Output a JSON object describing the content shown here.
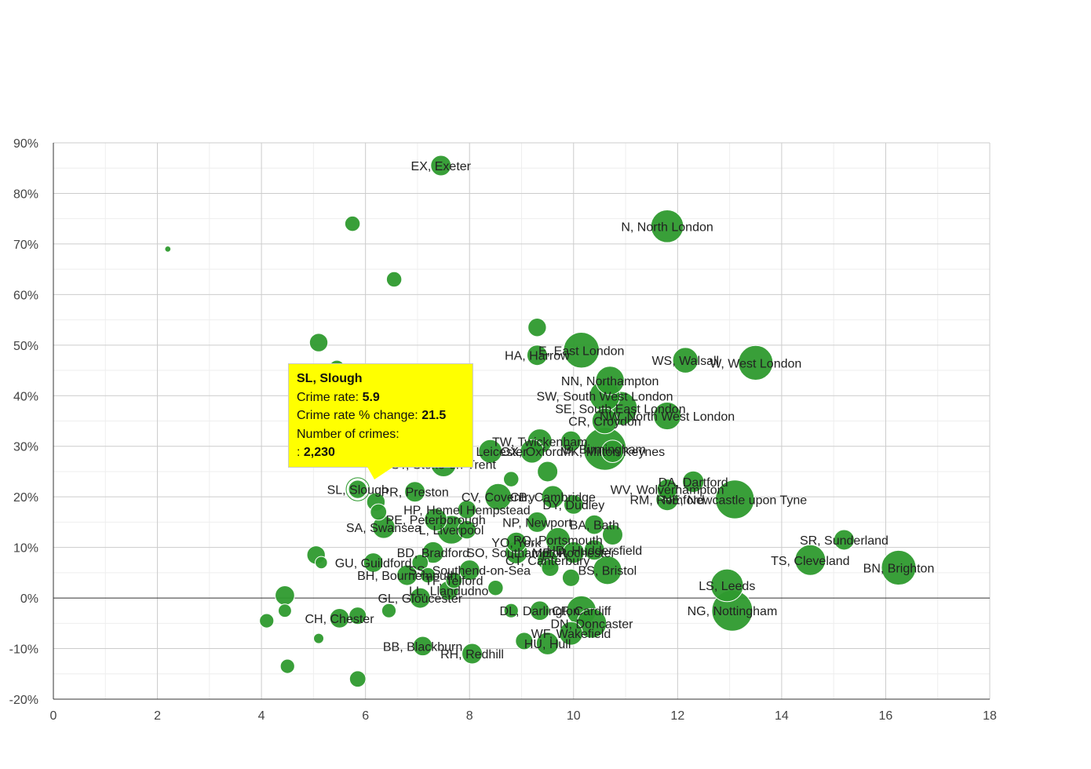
{
  "chart_data": {
    "type": "scatter",
    "title": "",
    "xlabel": "",
    "ylabel": "",
    "xlim": [
      0,
      18
    ],
    "ylim": [
      -20,
      90
    ],
    "x_ticks": [
      "0",
      "2",
      "4",
      "6",
      "8",
      "10",
      "12",
      "14",
      "16",
      "18"
    ],
    "y_ticks": [
      "-20%",
      "-10%",
      "0%",
      "10%",
      "20%",
      "30%",
      "40%",
      "50%",
      "60%",
      "70%",
      "80%",
      "90%"
    ],
    "grid": true,
    "colors": {
      "bubble": "#2e9a2e",
      "highlight_ring": "#ffffff",
      "tooltip_bg": "#ffff00"
    },
    "points": [
      {
        "label": "EX, Exeter",
        "x": 7.45,
        "y": 85.5,
        "size": 2
      },
      {
        "label": "",
        "x": 5.75,
        "y": 74,
        "size": 1.5
      },
      {
        "label": "",
        "x": 2.2,
        "y": 69,
        "size": 0.6
      },
      {
        "label": "",
        "x": 6.55,
        "y": 63,
        "size": 1.5
      },
      {
        "label": "N, North London",
        "x": 11.8,
        "y": 73.5,
        "size": 3.2
      },
      {
        "label": "",
        "x": 9.3,
        "y": 53.5,
        "size": 1.8
      },
      {
        "label": "",
        "x": 5.1,
        "y": 50.5,
        "size": 1.8
      },
      {
        "label": "",
        "x": 5.45,
        "y": 45.5,
        "size": 1.5
      },
      {
        "label": "HA, Harrow",
        "x": 9.3,
        "y": 48,
        "size": 2
      },
      {
        "label": "E, East London",
        "x": 10.15,
        "y": 49,
        "size": 3.5
      },
      {
        "label": "WS, Walsall",
        "x": 12.15,
        "y": 47,
        "size": 2.5
      },
      {
        "label": "W, West London",
        "x": 13.5,
        "y": 46.5,
        "size": 3.4
      },
      {
        "label": "NN, Northampton",
        "x": 10.7,
        "y": 43,
        "size": 2.8
      },
      {
        "label": "SW, South West London",
        "x": 10.6,
        "y": 40,
        "size": 3
      },
      {
        "label": "SE, South East London",
        "x": 10.9,
        "y": 37.5,
        "size": 3.3
      },
      {
        "label": "NW, North West London",
        "x": 11.8,
        "y": 36,
        "size": 2.7
      },
      {
        "label": "CR, Croydon",
        "x": 10.6,
        "y": 35,
        "size": 2.5
      },
      {
        "label": "TW, Twickenham",
        "x": 9.35,
        "y": 31,
        "size": 2.4
      },
      {
        "label": "",
        "x": 9.95,
        "y": 31,
        "size": 2
      },
      {
        "label": "B, Birmingham",
        "x": 10.6,
        "y": 29.5,
        "size": 4.2
      },
      {
        "label": "OX, Oxford",
        "x": 9.2,
        "y": 29,
        "size": 2.3
      },
      {
        "label": "MK, Milton Keynes",
        "x": 10.75,
        "y": 29,
        "size": 2.2
      },
      {
        "label": "LE, Leicester",
        "x": 8.4,
        "y": 29,
        "size": 2.3
      },
      {
        "label": "ST, Stoke-on-Trent",
        "x": 7.5,
        "y": 26.5,
        "size": 2.5
      },
      {
        "label": "",
        "x": 9.5,
        "y": 25,
        "size": 2
      },
      {
        "label": "",
        "x": 8.8,
        "y": 23.5,
        "size": 1.5
      },
      {
        "label": "DA, Dartford",
        "x": 12.3,
        "y": 23,
        "size": 2.1
      },
      {
        "label": "WV, Wolverhampton",
        "x": 11.8,
        "y": 21.5,
        "size": 2
      },
      {
        "label": "SL, Slough",
        "x": 5.85,
        "y": 21.5,
        "size": 1.8,
        "highlight": true
      },
      {
        "label": "PR, Preston",
        "x": 6.95,
        "y": 21,
        "size": 2
      },
      {
        "label": "RM, Romford",
        "x": 11.8,
        "y": 19.5,
        "size": 2.2
      },
      {
        "label": "NE, Newcastle upon Tyne",
        "x": 13.1,
        "y": 19.5,
        "size": 3.8
      },
      {
        "label": "CV, Coventry",
        "x": 8.55,
        "y": 20,
        "size": 2.6
      },
      {
        "label": "CB, Cambridge",
        "x": 9.6,
        "y": 20,
        "size": 2.2
      },
      {
        "label": "",
        "x": 6.2,
        "y": 19,
        "size": 1.8
      },
      {
        "label": "DY, Dudley",
        "x": 10,
        "y": 18.5,
        "size": 1.9
      },
      {
        "label": "",
        "x": 6.25,
        "y": 17,
        "size": 1.6
      },
      {
        "label": "HP, Hemel Hempstead",
        "x": 7.95,
        "y": 17.5,
        "size": 1.8
      },
      {
        "label": "PE, Peterborough",
        "x": 7.35,
        "y": 15.5,
        "size": 2.2
      },
      {
        "label": "NP, Newport",
        "x": 9.3,
        "y": 15,
        "size": 2
      },
      {
        "label": "BA, Bath",
        "x": 10.4,
        "y": 14.5,
        "size": 1.9
      },
      {
        "label": "SA, Swansea",
        "x": 6.35,
        "y": 14,
        "size": 2.2
      },
      {
        "label": "L, Liverpool",
        "x": 7.65,
        "y": 13.5,
        "size": 2.8
      },
      {
        "label": "",
        "x": 7.95,
        "y": 13.5,
        "size": 1.8
      },
      {
        "label": "PO, Portsmouth",
        "x": 9.7,
        "y": 11.5,
        "size": 2.4
      },
      {
        "label": "",
        "x": 10.75,
        "y": 12.5,
        "size": 2
      },
      {
        "label": "YO, York",
        "x": 8.9,
        "y": 11,
        "size": 2
      },
      {
        "label": "SR, Sunderland",
        "x": 15.2,
        "y": 11.5,
        "size": 2
      },
      {
        "label": "HD, Huddersfield",
        "x": 10.4,
        "y": 9.5,
        "size": 2
      },
      {
        "label": "BD, Bradford",
        "x": 7.3,
        "y": 9,
        "size": 2.1
      },
      {
        "label": "SO, Southampton",
        "x": 8.9,
        "y": 9,
        "size": 2.2
      },
      {
        "label": "ME, Rochester",
        "x": 10,
        "y": 9,
        "size": 2.1
      },
      {
        "label": "",
        "x": 5.05,
        "y": 8.5,
        "size": 1.8
      },
      {
        "label": "TS, Cleveland",
        "x": 14.55,
        "y": 7.5,
        "size": 3
      },
      {
        "label": "BN, Brighton",
        "x": 16.25,
        "y": 6,
        "size": 3.4
      },
      {
        "label": "CT, Canterbury",
        "x": 9.5,
        "y": 7.5,
        "size": 2
      },
      {
        "label": "GU, Guildford",
        "x": 6.15,
        "y": 7,
        "size": 1.9
      },
      {
        "label": "",
        "x": 5.15,
        "y": 7,
        "size": 1.2
      },
      {
        "label": "",
        "x": 7.05,
        "y": 7,
        "size": 1.6
      },
      {
        "label": "BS, Bristol",
        "x": 10.65,
        "y": 5.5,
        "size": 2.8
      },
      {
        "label": "SS, Southend-on-Sea",
        "x": 8,
        "y": 5.5,
        "size": 2
      },
      {
        "label": "",
        "x": 9.55,
        "y": 6,
        "size": 1.7
      },
      {
        "label": "BH, Bournemouth",
        "x": 6.8,
        "y": 4.5,
        "size": 2
      },
      {
        "label": "",
        "x": 7.2,
        "y": 4.5,
        "size": 1.5
      },
      {
        "label": "TF, Telford",
        "x": 7.7,
        "y": 3.5,
        "size": 1.6
      },
      {
        "label": "",
        "x": 9.95,
        "y": 4,
        "size": 1.7
      },
      {
        "label": "LS, Leeds",
        "x": 12.95,
        "y": 2.5,
        "size": 3.2
      },
      {
        "label": "",
        "x": 8.5,
        "y": 2,
        "size": 1.5
      },
      {
        "label": "LL, Llandudno",
        "x": 7.6,
        "y": 1.5,
        "size": 1.9
      },
      {
        "label": "",
        "x": 4.45,
        "y": 0.5,
        "size": 1.9
      },
      {
        "label": "GL, Gloucester",
        "x": 7.05,
        "y": 0,
        "size": 2
      },
      {
        "label": "CF, Cardiff",
        "x": 10.15,
        "y": -2.5,
        "size": 2.9
      },
      {
        "label": "NG, Nottingham",
        "x": 13.05,
        "y": -2.5,
        "size": 4
      },
      {
        "label": "DL, Darlington",
        "x": 9.35,
        "y": -2.5,
        "size": 1.9
      },
      {
        "label": "",
        "x": 8.8,
        "y": -2.5,
        "size": 1.4
      },
      {
        "label": "",
        "x": 4.45,
        "y": -2.5,
        "size": 1.3
      },
      {
        "label": "",
        "x": 6.45,
        "y": -2.5,
        "size": 1.4
      },
      {
        "label": "CH, Chester",
        "x": 5.5,
        "y": -4,
        "size": 1.9
      },
      {
        "label": "",
        "x": 5.85,
        "y": -3.5,
        "size": 1.7
      },
      {
        "label": "",
        "x": 4.1,
        "y": -4.5,
        "size": 1.4
      },
      {
        "label": "DN, Doncaster",
        "x": 10.35,
        "y": -5,
        "size": 2.9
      },
      {
        "label": "WF, Wakefield",
        "x": 9.95,
        "y": -7,
        "size": 2.3
      },
      {
        "label": "",
        "x": 5.1,
        "y": -8,
        "size": 1
      },
      {
        "label": "HU, Hull",
        "x": 9.5,
        "y": -9,
        "size": 2.2
      },
      {
        "label": "",
        "x": 9.05,
        "y": -8.5,
        "size": 1.7
      },
      {
        "label": "BB, Blackburn",
        "x": 7.1,
        "y": -9.5,
        "size": 1.9
      },
      {
        "label": "RH, Redhill",
        "x": 8.05,
        "y": -11,
        "size": 2
      },
      {
        "label": "",
        "x": 4.5,
        "y": -13.5,
        "size": 1.4
      },
      {
        "label": "",
        "x": 5.85,
        "y": -16,
        "size": 1.6
      }
    ]
  },
  "tooltip": {
    "title": "SL, Slough",
    "rate_label": "Crime rate:",
    "rate_value": "5.9",
    "change_label": "Crime rate % change:",
    "change_value": "21.5",
    "count_label": "Number of crimes:",
    "count_prefix": ":",
    "count_value": "2,230"
  }
}
